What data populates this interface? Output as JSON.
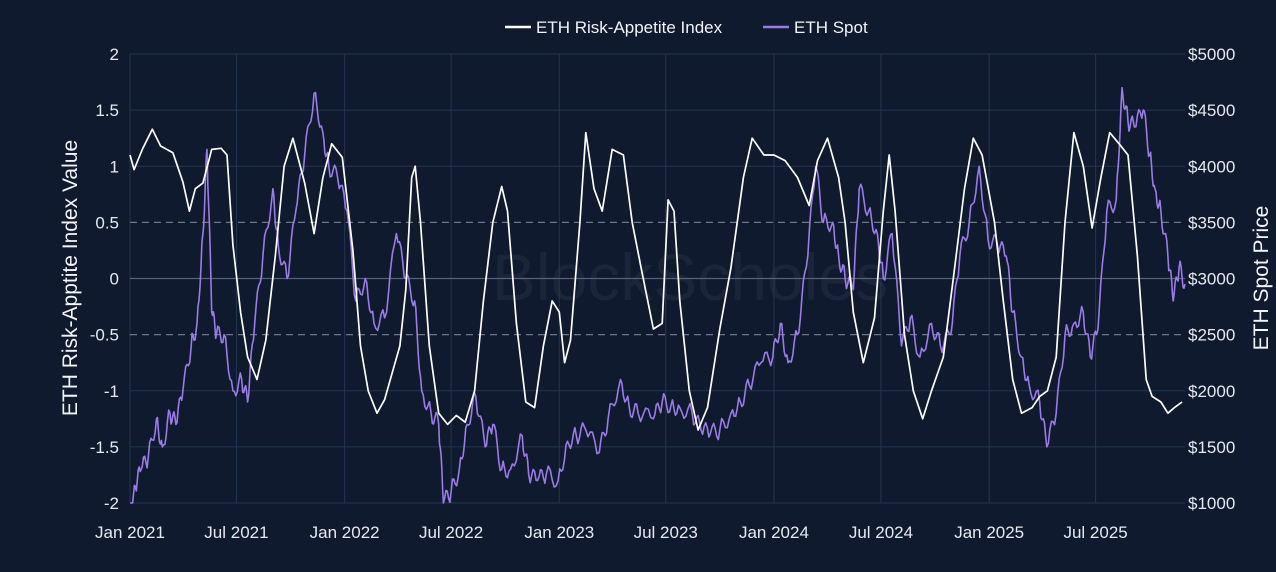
{
  "watermark": "BlockScholes",
  "chart_data": {
    "type": "line",
    "title": "",
    "xlabel": "",
    "ylabel": "ETH Risk-Apptite Index Value",
    "y2label": "ETH Spot Price",
    "ylim": [
      -2,
      2
    ],
    "y2lim": [
      1000,
      5000
    ],
    "grid": true,
    "legend_position": "top-center",
    "x_ticks": [
      "Jan 2021",
      "Jul 2021",
      "Jan 2022",
      "Jul 2022",
      "Jan 2023",
      "Jul 2023",
      "Jan 2024",
      "Jul 2024",
      "Jan 2025",
      "Jul 2025"
    ],
    "x_tick_dates": [
      "2021-01-01",
      "2021-07-01",
      "2022-01-01",
      "2022-07-01",
      "2023-01-01",
      "2023-07-01",
      "2024-01-01",
      "2024-07-01",
      "2025-01-01",
      "2025-07-01"
    ],
    "x_range": [
      "2021-01-01",
      "2025-11-30"
    ],
    "y_ticks": [
      "2",
      "1.5",
      "1",
      "0.5",
      "0",
      "-0.5",
      "-1",
      "-1.5",
      "-2"
    ],
    "y_tick_values": [
      2,
      1.5,
      1,
      0.5,
      0,
      -0.5,
      -1,
      -1.5,
      -2
    ],
    "y2_ticks": [
      "$5000",
      "$4500",
      "$4000",
      "$3500",
      "$3000",
      "$2500",
      "$2000",
      "$1500",
      "$1000"
    ],
    "y2_tick_values": [
      5000,
      4500,
      4000,
      3500,
      3000,
      2500,
      2000,
      1500,
      1000
    ],
    "dashed_y_values": [
      0.5,
      -0.5
    ],
    "series": [
      {
        "name": "ETH Risk-Appetite Index",
        "axis": "left",
        "color": "#ffffff",
        "points": [
          [
            "2021-01-01",
            1.1
          ],
          [
            "2021-01-08",
            0.97
          ],
          [
            "2021-01-22",
            1.15
          ],
          [
            "2021-02-08",
            1.33
          ],
          [
            "2021-02-22",
            1.18
          ],
          [
            "2021-03-15",
            1.12
          ],
          [
            "2021-04-01",
            0.86
          ],
          [
            "2021-04-12",
            0.6
          ],
          [
            "2021-04-22",
            0.8
          ],
          [
            "2021-05-05",
            0.85
          ],
          [
            "2021-05-20",
            1.15
          ],
          [
            "2021-06-05",
            1.16
          ],
          [
            "2021-06-15",
            1.1
          ],
          [
            "2021-06-25",
            0.3
          ],
          [
            "2021-07-08",
            -0.3
          ],
          [
            "2021-07-20",
            -0.7
          ],
          [
            "2021-08-05",
            -0.9
          ],
          [
            "2021-08-20",
            -0.55
          ],
          [
            "2021-09-05",
            0.2
          ],
          [
            "2021-09-20",
            1.0
          ],
          [
            "2021-10-05",
            1.25
          ],
          [
            "2021-10-25",
            0.85
          ],
          [
            "2021-11-10",
            0.4
          ],
          [
            "2021-11-25",
            0.9
          ],
          [
            "2021-12-10",
            1.2
          ],
          [
            "2021-12-28",
            1.08
          ],
          [
            "2022-01-15",
            0.25
          ],
          [
            "2022-01-28",
            -0.6
          ],
          [
            "2022-02-10",
            -1.0
          ],
          [
            "2022-02-25",
            -1.2
          ],
          [
            "2022-03-10",
            -1.08
          ],
          [
            "2022-03-25",
            -0.8
          ],
          [
            "2022-04-05",
            -0.6
          ],
          [
            "2022-04-15",
            -0.1
          ],
          [
            "2022-04-25",
            0.9
          ],
          [
            "2022-05-01",
            1.0
          ],
          [
            "2022-05-10",
            0.5
          ],
          [
            "2022-05-25",
            -0.6
          ],
          [
            "2022-06-10",
            -1.2
          ],
          [
            "2022-06-25",
            -1.3
          ],
          [
            "2022-07-10",
            -1.22
          ],
          [
            "2022-07-25",
            -1.28
          ],
          [
            "2022-08-10",
            -1.0
          ],
          [
            "2022-08-25",
            -0.2
          ],
          [
            "2022-09-10",
            0.5
          ],
          [
            "2022-09-25",
            0.82
          ],
          [
            "2022-10-05",
            0.6
          ],
          [
            "2022-10-20",
            -0.4
          ],
          [
            "2022-11-05",
            -1.1
          ],
          [
            "2022-11-20",
            -1.15
          ],
          [
            "2022-12-05",
            -0.6
          ],
          [
            "2022-12-20",
            -0.2
          ],
          [
            "2023-01-01",
            -0.3
          ],
          [
            "2023-01-10",
            -0.75
          ],
          [
            "2023-01-20",
            -0.55
          ],
          [
            "2023-02-05",
            0.5
          ],
          [
            "2023-02-15",
            1.3
          ],
          [
            "2023-03-01",
            0.8
          ],
          [
            "2023-03-15",
            0.6
          ],
          [
            "2023-04-01",
            1.15
          ],
          [
            "2023-04-20",
            1.1
          ],
          [
            "2023-05-05",
            0.5
          ],
          [
            "2023-05-20",
            0.1
          ],
          [
            "2023-06-10",
            -0.45
          ],
          [
            "2023-06-25",
            -0.4
          ],
          [
            "2023-07-05",
            0.7
          ],
          [
            "2023-07-15",
            0.6
          ],
          [
            "2023-07-25",
            -0.2
          ],
          [
            "2023-08-10",
            -1.0
          ],
          [
            "2023-08-25",
            -1.35
          ],
          [
            "2023-09-10",
            -1.15
          ],
          [
            "2023-10-01",
            -0.45
          ],
          [
            "2023-10-20",
            0.1
          ],
          [
            "2023-11-10",
            0.9
          ],
          [
            "2023-11-25",
            1.25
          ],
          [
            "2023-12-15",
            1.1
          ],
          [
            "2024-01-01",
            1.1
          ],
          [
            "2024-01-20",
            1.05
          ],
          [
            "2024-02-10",
            0.9
          ],
          [
            "2024-03-01",
            0.65
          ],
          [
            "2024-03-15",
            1.05
          ],
          [
            "2024-04-01",
            1.25
          ],
          [
            "2024-04-20",
            0.9
          ],
          [
            "2024-05-01",
            0.5
          ],
          [
            "2024-05-15",
            -0.3
          ],
          [
            "2024-06-01",
            -0.75
          ],
          [
            "2024-06-20",
            -0.35
          ],
          [
            "2024-07-05",
            0.6
          ],
          [
            "2024-07-15",
            1.1
          ],
          [
            "2024-07-25",
            0.6
          ],
          [
            "2024-08-10",
            -0.5
          ],
          [
            "2024-08-25",
            -1.0
          ],
          [
            "2024-09-10",
            -1.25
          ],
          [
            "2024-09-25",
            -1.0
          ],
          [
            "2024-10-15",
            -0.7
          ],
          [
            "2024-11-01",
            0.0
          ],
          [
            "2024-11-20",
            0.8
          ],
          [
            "2024-12-05",
            1.25
          ],
          [
            "2024-12-20",
            1.1
          ],
          [
            "2025-01-10",
            0.5
          ],
          [
            "2025-01-25",
            -0.2
          ],
          [
            "2025-02-10",
            -0.9
          ],
          [
            "2025-02-25",
            -1.2
          ],
          [
            "2025-03-15",
            -1.15
          ],
          [
            "2025-03-28",
            -1.05
          ],
          [
            "2025-04-10",
            -1.0
          ],
          [
            "2025-04-25",
            -0.7
          ],
          [
            "2025-05-10",
            0.5
          ],
          [
            "2025-05-25",
            1.3
          ],
          [
            "2025-06-10",
            1.0
          ],
          [
            "2025-06-25",
            0.45
          ],
          [
            "2025-07-10",
            0.9
          ],
          [
            "2025-07-25",
            1.3
          ],
          [
            "2025-08-10",
            1.2
          ],
          [
            "2025-08-25",
            1.1
          ],
          [
            "2025-09-10",
            0.2
          ],
          [
            "2025-09-25",
            -0.9
          ],
          [
            "2025-10-05",
            -1.05
          ],
          [
            "2025-10-20",
            -1.1
          ],
          [
            "2025-11-01",
            -1.2
          ],
          [
            "2025-11-12",
            -1.15
          ],
          [
            "2025-11-25",
            -1.1
          ]
        ]
      },
      {
        "name": "ETH Spot",
        "axis": "right",
        "color": "#9b7be6",
        "points": [
          [
            "2021-01-01",
            740
          ],
          [
            "2021-01-10",
            1150
          ],
          [
            "2021-01-20",
            1300
          ],
          [
            "2021-02-01",
            1400
          ],
          [
            "2021-02-15",
            1750
          ],
          [
            "2021-02-25",
            1500
          ],
          [
            "2021-03-10",
            1800
          ],
          [
            "2021-03-20",
            1700
          ],
          [
            "2021-04-01",
            2000
          ],
          [
            "2021-04-15",
            2400
          ],
          [
            "2021-04-25",
            2600
          ],
          [
            "2021-05-05",
            3400
          ],
          [
            "2021-05-12",
            4150
          ],
          [
            "2021-05-20",
            2700
          ],
          [
            "2021-05-28",
            2500
          ],
          [
            "2021-06-10",
            2500
          ],
          [
            "2021-06-25",
            2000
          ],
          [
            "2021-07-10",
            2100
          ],
          [
            "2021-07-20",
            1900
          ],
          [
            "2021-08-01",
            2600
          ],
          [
            "2021-08-15",
            3200
          ],
          [
            "2021-09-01",
            3800
          ],
          [
            "2021-09-10",
            3300
          ],
          [
            "2021-09-25",
            3000
          ],
          [
            "2021-10-10",
            3600
          ],
          [
            "2021-10-25",
            4100
          ],
          [
            "2021-11-10",
            4650
          ],
          [
            "2021-11-25",
            4300
          ],
          [
            "2021-12-05",
            4000
          ],
          [
            "2021-12-20",
            3900
          ],
          [
            "2022-01-05",
            3600
          ],
          [
            "2022-01-20",
            2800
          ],
          [
            "2022-02-05",
            3000
          ],
          [
            "2022-02-20",
            2600
          ],
          [
            "2022-03-10",
            2650
          ],
          [
            "2022-03-30",
            3400
          ],
          [
            "2022-04-15",
            3000
          ],
          [
            "2022-04-30",
            2800
          ],
          [
            "2022-05-12",
            2000
          ],
          [
            "2022-05-28",
            1800
          ],
          [
            "2022-06-10",
            1700
          ],
          [
            "2022-06-18",
            1000
          ],
          [
            "2022-07-01",
            1100
          ],
          [
            "2022-07-15",
            1300
          ],
          [
            "2022-07-28",
            1700
          ],
          [
            "2022-08-12",
            1950
          ],
          [
            "2022-08-28",
            1500
          ],
          [
            "2022-09-10",
            1700
          ],
          [
            "2022-09-25",
            1300
          ],
          [
            "2022-10-10",
            1300
          ],
          [
            "2022-10-30",
            1600
          ],
          [
            "2022-11-10",
            1250
          ],
          [
            "2022-11-25",
            1200
          ],
          [
            "2022-12-10",
            1260
          ],
          [
            "2022-12-30",
            1200
          ],
          [
            "2023-01-15",
            1550
          ],
          [
            "2023-01-30",
            1600
          ],
          [
            "2023-02-15",
            1650
          ],
          [
            "2023-03-10",
            1450
          ],
          [
            "2023-03-25",
            1750
          ],
          [
            "2023-04-15",
            2100
          ],
          [
            "2023-04-30",
            1850
          ],
          [
            "2023-05-15",
            1800
          ],
          [
            "2023-06-10",
            1750
          ],
          [
            "2023-06-25",
            1900
          ],
          [
            "2023-07-10",
            1870
          ],
          [
            "2023-07-25",
            1850
          ],
          [
            "2023-08-15",
            1800
          ],
          [
            "2023-08-30",
            1650
          ],
          [
            "2023-09-15",
            1620
          ],
          [
            "2023-10-01",
            1650
          ],
          [
            "2023-10-20",
            1800
          ],
          [
            "2023-11-05",
            1900
          ],
          [
            "2023-11-20",
            2050
          ],
          [
            "2023-12-10",
            2250
          ],
          [
            "2023-12-30",
            2300
          ],
          [
            "2024-01-12",
            2600
          ],
          [
            "2024-01-25",
            2250
          ],
          [
            "2024-02-10",
            2500
          ],
          [
            "2024-02-25",
            3100
          ],
          [
            "2024-03-12",
            4000
          ],
          [
            "2024-03-25",
            3500
          ],
          [
            "2024-04-10",
            3500
          ],
          [
            "2024-04-20",
            3200
          ],
          [
            "2024-05-01",
            3000
          ],
          [
            "2024-05-15",
            2900
          ],
          [
            "2024-05-25",
            3800
          ],
          [
            "2024-06-10",
            3600
          ],
          [
            "2024-06-25",
            3400
          ],
          [
            "2024-07-05",
            3000
          ],
          [
            "2024-07-20",
            3400
          ],
          [
            "2024-08-05",
            2400
          ],
          [
            "2024-08-20",
            2650
          ],
          [
            "2024-09-05",
            2300
          ],
          [
            "2024-09-25",
            2600
          ],
          [
            "2024-10-10",
            2400
          ],
          [
            "2024-10-28",
            2500
          ],
          [
            "2024-11-12",
            3200
          ],
          [
            "2024-11-28",
            3500
          ],
          [
            "2024-12-15",
            4000
          ],
          [
            "2024-12-30",
            3350
          ],
          [
            "2025-01-15",
            3300
          ],
          [
            "2025-01-30",
            3200
          ],
          [
            "2025-02-10",
            2700
          ],
          [
            "2025-02-25",
            2300
          ],
          [
            "2025-03-10",
            2050
          ],
          [
            "2025-03-28",
            1900
          ],
          [
            "2025-04-09",
            1500
          ],
          [
            "2025-04-25",
            1800
          ],
          [
            "2025-05-10",
            2500
          ],
          [
            "2025-05-25",
            2600
          ],
          [
            "2025-06-10",
            2700
          ],
          [
            "2025-06-22",
            2300
          ],
          [
            "2025-07-05",
            2550
          ],
          [
            "2025-07-20",
            3600
          ],
          [
            "2025-08-05",
            3700
          ],
          [
            "2025-08-15",
            4700
          ],
          [
            "2025-08-25",
            4400
          ],
          [
            "2025-09-05",
            4350
          ],
          [
            "2025-09-20",
            4500
          ],
          [
            "2025-10-01",
            4100
          ],
          [
            "2025-10-10",
            3800
          ],
          [
            "2025-10-20",
            3600
          ],
          [
            "2025-11-01",
            3200
          ],
          [
            "2025-11-10",
            2800
          ],
          [
            "2025-11-20",
            3100
          ],
          [
            "2025-11-30",
            2950
          ]
        ]
      }
    ]
  }
}
